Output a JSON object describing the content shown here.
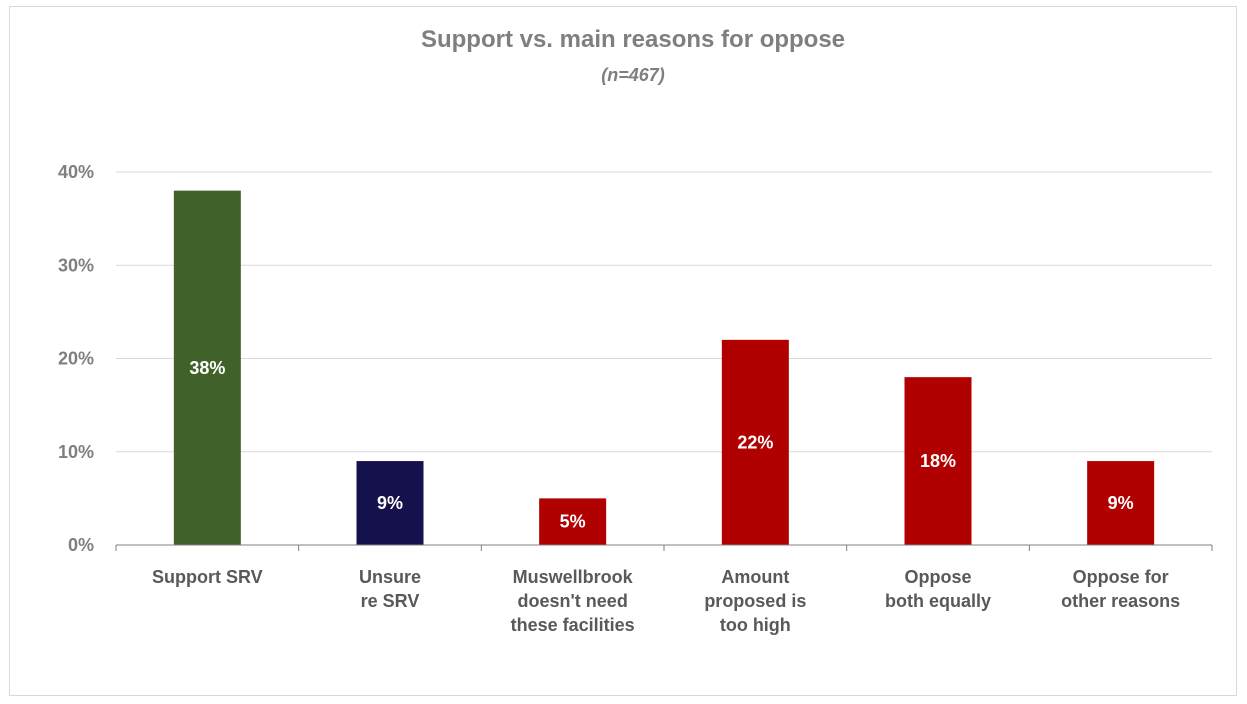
{
  "chart_data": {
    "type": "bar",
    "title": "Support vs. main reasons for oppose",
    "subtitle": "(n=467)",
    "categories": [
      [
        "Support SRV"
      ],
      [
        "Unsure",
        "re SRV"
      ],
      [
        "Muswellbrook",
        "doesn't need",
        "these facilities"
      ],
      [
        "Amount",
        "proposed is",
        "too high"
      ],
      [
        "Oppose",
        "both equally"
      ],
      [
        "Oppose for",
        "other reasons"
      ]
    ],
    "values": [
      38,
      9,
      5,
      22,
      18,
      9
    ],
    "data_labels": [
      "38%",
      "9%",
      "5%",
      "22%",
      "18%",
      "9%"
    ],
    "colors": [
      "#41612a",
      "#14114d",
      "#b00000",
      "#b00000",
      "#b00000",
      "#b00000"
    ],
    "ylim": [
      0,
      40
    ],
    "yticks": [
      0,
      10,
      20,
      30,
      40
    ],
    "ytick_labels": [
      "0%",
      "10%",
      "20%",
      "30%",
      "40%"
    ],
    "grid": true,
    "legend": "none",
    "xlabel": "",
    "ylabel": ""
  }
}
